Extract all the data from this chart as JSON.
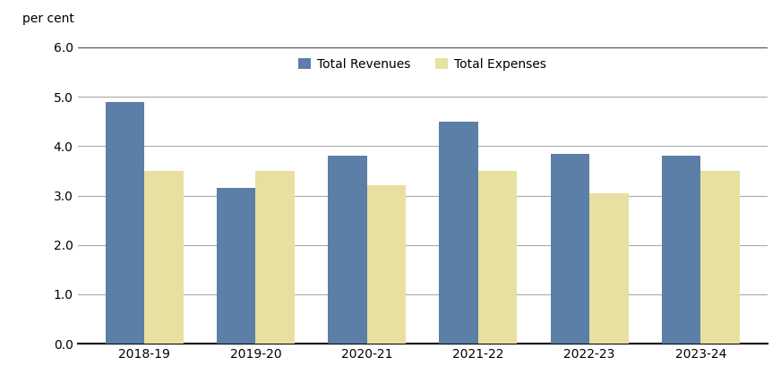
{
  "categories": [
    "2018-19",
    "2019-20",
    "2020-21",
    "2021-22",
    "2022-23",
    "2023-24"
  ],
  "revenues": [
    4.9,
    3.15,
    3.8,
    4.5,
    3.85,
    3.8
  ],
  "expenses": [
    3.5,
    3.5,
    3.2,
    3.5,
    3.05,
    3.5
  ],
  "revenue_color": "#5b7fa6",
  "expense_color": "#e8e0a0",
  "revenue_label": "Total Revenues",
  "expense_label": "Total Expenses",
  "ylabel": "per cent",
  "ylim": [
    0.0,
    6.2
  ],
  "yticks": [
    0.0,
    1.0,
    2.0,
    3.0,
    4.0,
    5.0,
    6.0
  ],
  "bar_width": 0.35,
  "background_color": "#ffffff",
  "grid_color": "#aaaaaa",
  "axis_color": "#000000"
}
